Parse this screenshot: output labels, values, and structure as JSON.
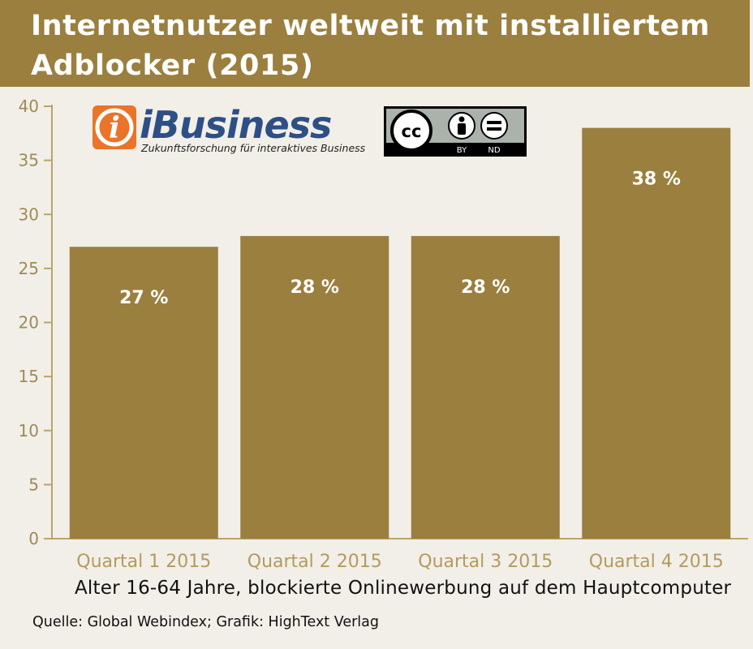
{
  "title": "Internetnutzer weltweit mit installiertem Adblocker (2015)",
  "subtitle": "Alter 16-64 Jahre, blockierte Onlinewerbung auf dem Hauptcomputer",
  "source": "Quelle: Global Webindex; Grafik: HighText Verlag",
  "logos": {
    "ibusiness": {
      "name": "iBusiness",
      "tagline": "Zukunftsforschung für interaktives Business"
    },
    "license": {
      "cc": "cc",
      "by": "BY",
      "nd": "ND"
    }
  },
  "colors": {
    "bar": "#9a7f3f",
    "title_bg": "#9a7f3f",
    "axis": "#bda36b",
    "tick_text": "#a08a55",
    "category_text": "#b59a5e",
    "background": "#f1efe8",
    "value_label": "#ffffff"
  },
  "chart_data": {
    "type": "bar",
    "title": "Internetnutzer weltweit mit installiertem Adblocker (2015)",
    "xlabel": "Alter 16-64 Jahre, blockierte Onlinewerbung auf dem Hauptcomputer",
    "ylabel": "",
    "categories": [
      "Quartal 1 2015",
      "Quartal 2 2015",
      "Quartal 3 2015",
      "Quartal 4 2015"
    ],
    "values": [
      27,
      28,
      28,
      38
    ],
    "value_labels": [
      "27 %",
      "28 %",
      "28 %",
      "38 %"
    ],
    "ylim": [
      0,
      40
    ],
    "yticks": [
      "0",
      "5",
      "10",
      "15",
      "20",
      "25",
      "30",
      "35",
      "40"
    ],
    "grid": false,
    "legend": "none"
  }
}
